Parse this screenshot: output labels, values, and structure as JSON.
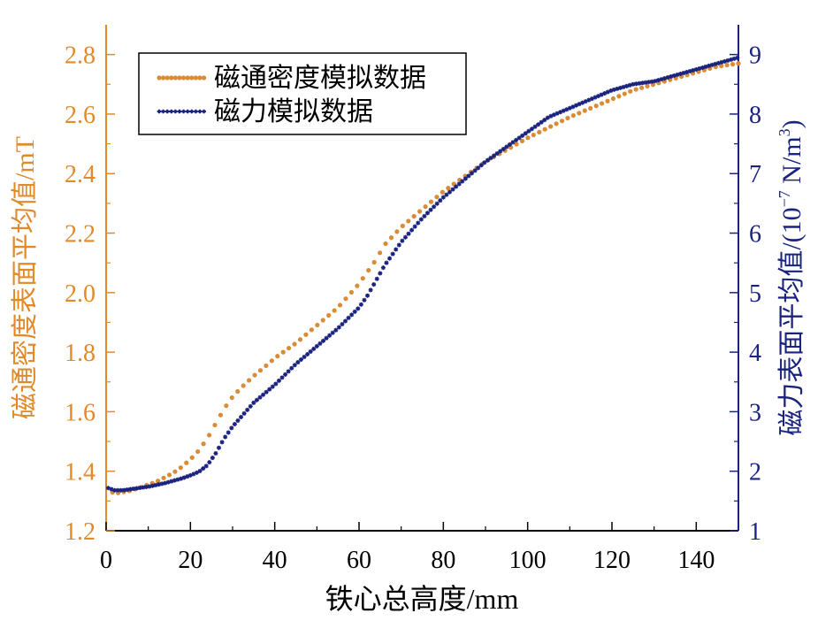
{
  "chart_data": {
    "type": "line",
    "xlabel": "铁心总高度/mm",
    "ylabel_left": "磁通密度表面平均值/mT",
    "ylabel_right_prefix": "磁力表面平均值/(10",
    "ylabel_right_exp": "−7",
    "ylabel_right_unit": " N/m",
    "ylabel_right_unit_exp": "3",
    "ylabel_right_suffix": ")",
    "xlim": [
      0,
      150
    ],
    "ylim_left": [
      1.2,
      2.9
    ],
    "ylim_right": [
      1,
      9.5
    ],
    "xticks": [
      "0",
      "20",
      "40",
      "60",
      "80",
      "100",
      "120",
      "140"
    ],
    "yticks_left": [
      "1.2",
      "1.4",
      "1.6",
      "1.8",
      "2.0",
      "2.2",
      "2.4",
      "2.6",
      "2.8"
    ],
    "yticks_right": [
      "1",
      "2",
      "3",
      "4",
      "5",
      "6",
      "7",
      "8",
      "9"
    ],
    "grid": false,
    "legend_position": "top-left",
    "colors": {
      "left_axis": "#e08a2a",
      "right_axis": "#1a237e",
      "plot_axis": "#000000"
    },
    "series": [
      {
        "name": "磁通密度模拟数据",
        "axis": "left",
        "color": "#d98b35",
        "marker": "dot",
        "x": [
          0,
          2,
          4,
          6,
          8,
          10,
          12,
          14,
          16,
          18,
          20,
          22,
          24,
          26,
          28,
          30,
          32,
          35,
          38,
          40,
          45,
          50,
          55,
          60,
          62,
          64,
          66,
          68,
          70,
          75,
          80,
          85,
          90,
          95,
          100,
          105,
          110,
          115,
          120,
          125,
          130,
          135,
          140,
          145,
          150
        ],
        "y": [
          1.34,
          1.325,
          1.33,
          1.335,
          1.345,
          1.355,
          1.365,
          1.38,
          1.395,
          1.415,
          1.44,
          1.47,
          1.51,
          1.56,
          1.61,
          1.65,
          1.68,
          1.72,
          1.755,
          1.78,
          1.83,
          1.89,
          1.95,
          2.03,
          2.07,
          2.11,
          2.16,
          2.19,
          2.22,
          2.28,
          2.34,
          2.39,
          2.44,
          2.48,
          2.52,
          2.555,
          2.59,
          2.62,
          2.65,
          2.68,
          2.7,
          2.72,
          2.74,
          2.76,
          2.77
        ]
      },
      {
        "name": "磁力模拟数据",
        "axis": "right",
        "color": "#1a237e",
        "marker": "asterisk",
        "x": [
          0,
          2,
          4,
          6,
          8,
          10,
          12,
          14,
          16,
          18,
          20,
          22,
          24,
          26,
          28,
          30,
          35,
          40,
          45,
          50,
          55,
          60,
          62,
          64,
          66,
          68,
          70,
          75,
          80,
          85,
          90,
          95,
          100,
          105,
          110,
          115,
          120,
          125,
          130,
          135,
          140,
          145,
          150
        ],
        "y": [
          1.73,
          1.68,
          1.68,
          1.7,
          1.72,
          1.74,
          1.77,
          1.8,
          1.84,
          1.88,
          1.93,
          1.99,
          2.1,
          2.3,
          2.55,
          2.75,
          3.15,
          3.45,
          3.8,
          4.1,
          4.4,
          4.75,
          4.95,
          5.2,
          5.45,
          5.65,
          5.85,
          6.25,
          6.6,
          6.9,
          7.2,
          7.45,
          7.7,
          7.95,
          8.1,
          8.25,
          8.4,
          8.5,
          8.55,
          8.65,
          8.75,
          8.85,
          8.95
        ]
      }
    ]
  }
}
